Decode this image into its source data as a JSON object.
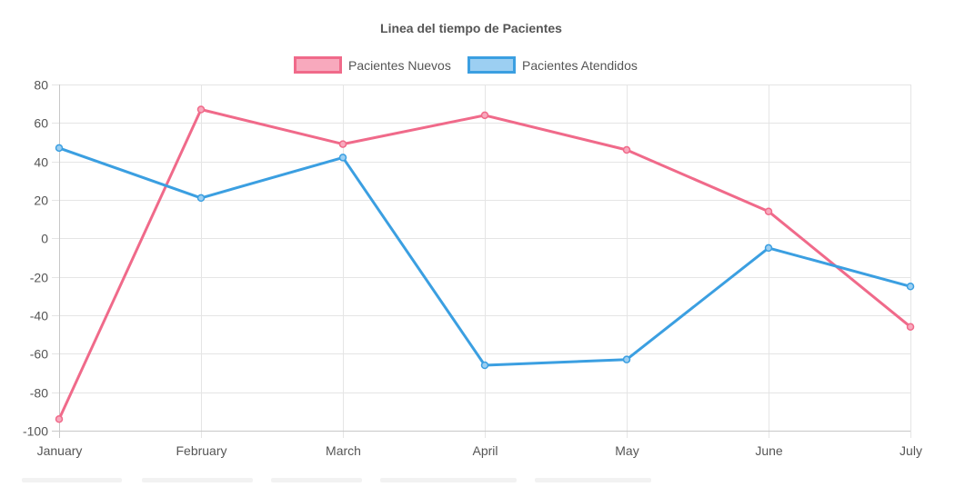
{
  "chart_data": {
    "type": "line",
    "title": "Linea del tiempo de Pacientes",
    "categories": [
      "January",
      "February",
      "March",
      "April",
      "May",
      "June",
      "July"
    ],
    "ylim": [
      -100,
      80
    ],
    "yticks": [
      80,
      60,
      40,
      20,
      0,
      -20,
      -40,
      -60,
      -80,
      -100
    ],
    "grid": true,
    "legend_position": "top",
    "series": [
      {
        "name": "Pacientes Nuevos",
        "values": [
          -94,
          67,
          49,
          64,
          46,
          14,
          -46
        ],
        "color": "#f06a8a",
        "fill": "#f8a9bd"
      },
      {
        "name": "Pacientes Atendidos",
        "values": [
          47,
          21,
          42,
          -66,
          -63,
          -5,
          -25
        ],
        "color": "#3b9fe1",
        "fill": "#9ccff2"
      }
    ]
  }
}
